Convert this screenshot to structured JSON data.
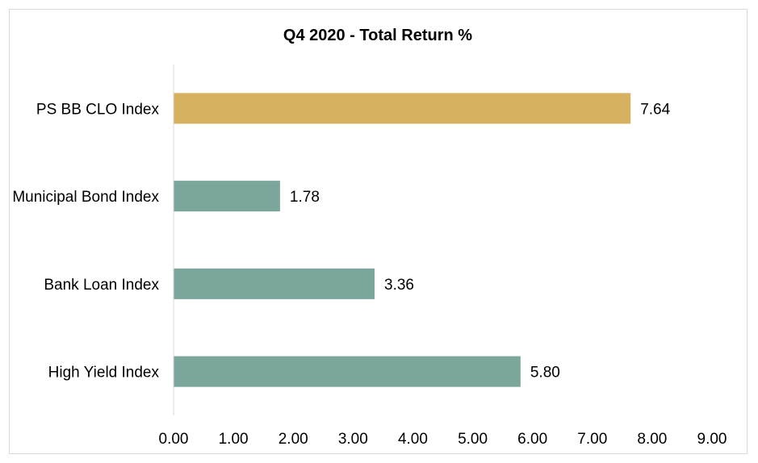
{
  "chart_data": {
    "type": "bar",
    "orientation": "horizontal",
    "title": "Q4 2020 - Total Return %",
    "xlabel": "",
    "ylabel": "",
    "categories": [
      "PS BB CLO Index",
      "Municipal Bond Index",
      "Bank Loan Index",
      "High Yield Index"
    ],
    "values": [
      7.64,
      1.78,
      3.36,
      5.8
    ],
    "data_labels": [
      "7.64",
      "1.78",
      "3.36",
      "5.80"
    ],
    "xlim": [
      0,
      9
    ],
    "x_ticks": [
      "0.00",
      "1.00",
      "2.00",
      "3.00",
      "4.00",
      "5.00",
      "6.00",
      "7.00",
      "8.00",
      "9.00"
    ],
    "bar_colors": [
      "#d6b15f",
      "#7ba69b",
      "#7ba69b",
      "#7ba69b"
    ],
    "axis_color": "#d9d9d9",
    "grid": false,
    "legend": "none"
  }
}
